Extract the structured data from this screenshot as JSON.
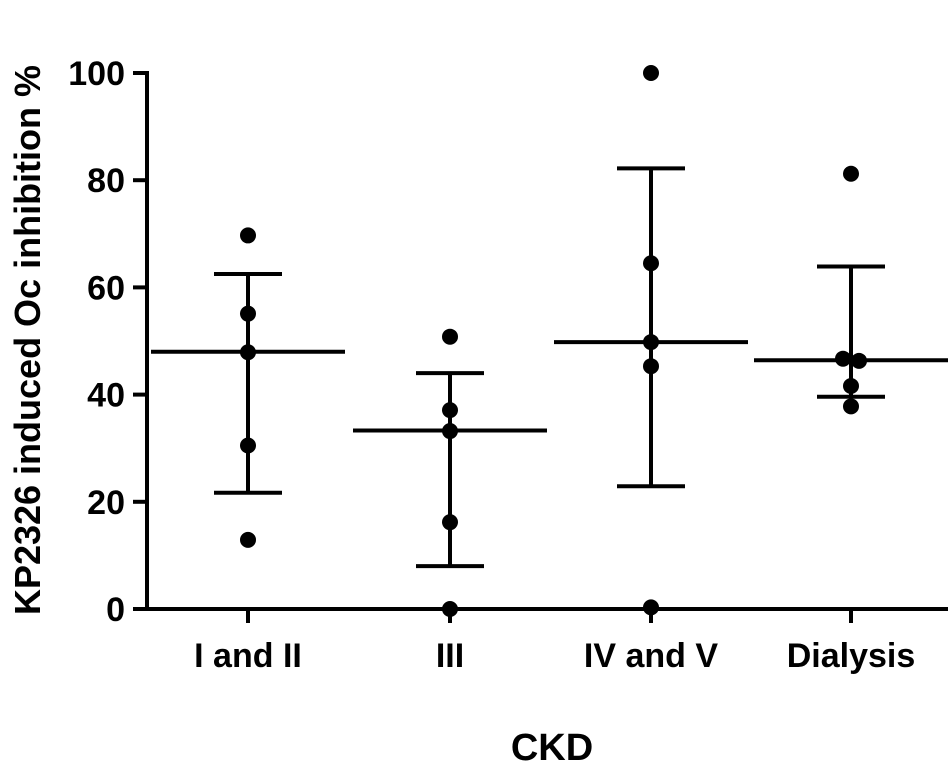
{
  "chart_data": {
    "type": "scatter",
    "subtype": "dot-plot with mean and standard deviation bars",
    "title": "",
    "xlabel": "CKD",
    "ylabel": "KP2326 induced Oc inhibition %",
    "categories": [
      "I and II",
      "III",
      "IV and V",
      "Dialysis"
    ],
    "ylim": [
      0,
      100
    ],
    "yticks": [
      0,
      20,
      40,
      60,
      80,
      100
    ],
    "grid": false,
    "legend": "none",
    "color": "#000000",
    "groups": [
      {
        "category": "I and II",
        "points": [
          69.7,
          55.1,
          47.9,
          30.5,
          12.9
        ],
        "mean": 48.0,
        "error_low": 21.7,
        "error_high": 62.5
      },
      {
        "category": "III",
        "points": [
          50.8,
          37.1,
          33.2,
          16.2,
          0.0
        ],
        "mean": 33.3,
        "error_low": 8.0,
        "error_high": 44.0
      },
      {
        "category": "IV and V",
        "points": [
          100.0,
          64.5,
          49.8,
          45.3,
          0.3
        ],
        "mean": 49.8,
        "error_low": 22.9,
        "error_high": 82.2
      },
      {
        "category": "Dialysis",
        "points": [
          81.2,
          46.7,
          46.3,
          41.6,
          37.8
        ],
        "mean": 46.4,
        "error_low": 39.6,
        "error_high": 63.9
      }
    ]
  }
}
